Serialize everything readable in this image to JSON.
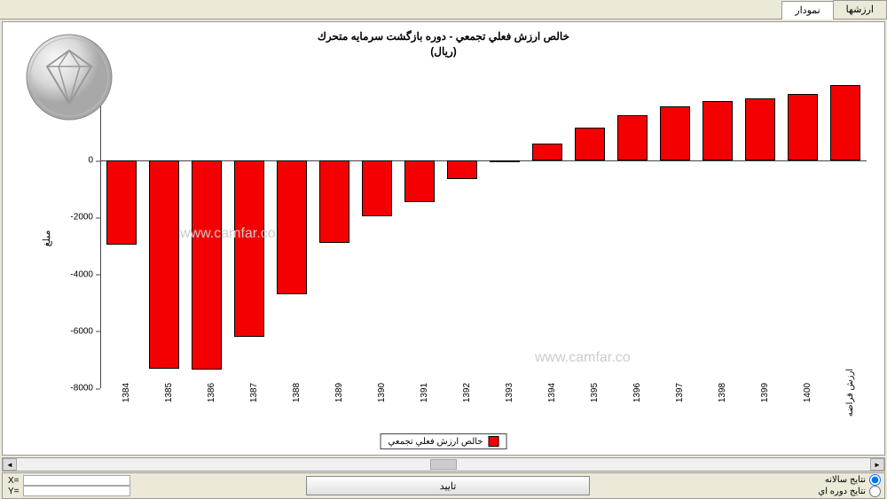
{
  "tabs": {
    "tab1": "نمودار",
    "tab2": "ارزشها"
  },
  "chart": {
    "type": "bar",
    "title_line1": "خالص ارزش فعلي تجمعي - دوره بازگشت سرمايه متحرك",
    "title_line2": "(ريال)",
    "ylabel": "مبلغ",
    "categories": [
      "1384",
      "1385",
      "1386",
      "1387",
      "1388",
      "1389",
      "1390",
      "1391",
      "1392",
      "1393",
      "1394",
      "1395",
      "1396",
      "1397",
      "1398",
      "1399",
      "1400",
      "ارزش قراضه"
    ],
    "values": [
      -2950,
      -7300,
      -7350,
      -6200,
      -4700,
      -2900,
      -1950,
      -1450,
      -650,
      -50,
      600,
      1150,
      1600,
      1900,
      2100,
      2200,
      2350,
      2650
    ],
    "bar_color": "#f40000",
    "bar_border": "#000000",
    "ymin": -8000,
    "ymax": 3000,
    "yticks": [
      -8000,
      -6000,
      -4000,
      -2000,
      0
    ],
    "grid_color": "#444444",
    "background_color": "#ffffff",
    "legend_label": "خالص ارزش فعلي تجمعي",
    "title_fontsize": 12,
    "label_fontsize": 10
  },
  "watermark": {
    "text": "www.camfar.co",
    "color": "#cccccc"
  },
  "controls": {
    "radio1": "نتايج سالانه",
    "radio2": "نتايج دوره اي",
    "confirm": "تاييد",
    "x_label": "X=",
    "y_label": "Y="
  }
}
